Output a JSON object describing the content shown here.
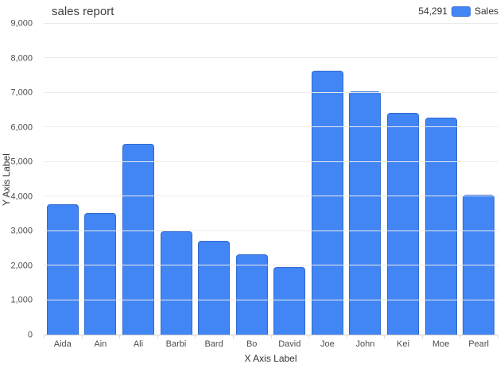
{
  "header": {
    "title": "sales report"
  },
  "legend": {
    "total": "54,291",
    "label": "Sales"
  },
  "chart_data": {
    "type": "bar",
    "title": "sales report",
    "categories": [
      "Aida",
      "Ain",
      "Ali",
      "Barbi",
      "Bard",
      "Bo",
      "David",
      "Joe",
      "John",
      "Kei",
      "Moe",
      "Pearl"
    ],
    "values": [
      3778,
      3518,
      5528,
      2998,
      2718,
      2328,
      1948,
      7648,
      7048,
      6428,
      6288,
      4063
    ],
    "series_name": "Sales",
    "series_total": "54,291",
    "xlabel": "X Axis Label",
    "ylabel": "Y Axis Label",
    "ylim": [
      0,
      9000
    ],
    "ytick_step": 1000,
    "grid": true,
    "legend_position": "top-right",
    "bar_color": "#4285f4",
    "bar_border_color": "#2f6ad0"
  },
  "colors": {
    "accent": "#4285f4",
    "bar_border": "#2f6ad0",
    "gridline": "#ebebeb",
    "axis_line": "#cccccc",
    "title_text": "#404040",
    "tick_text": "#4d4d4d"
  }
}
